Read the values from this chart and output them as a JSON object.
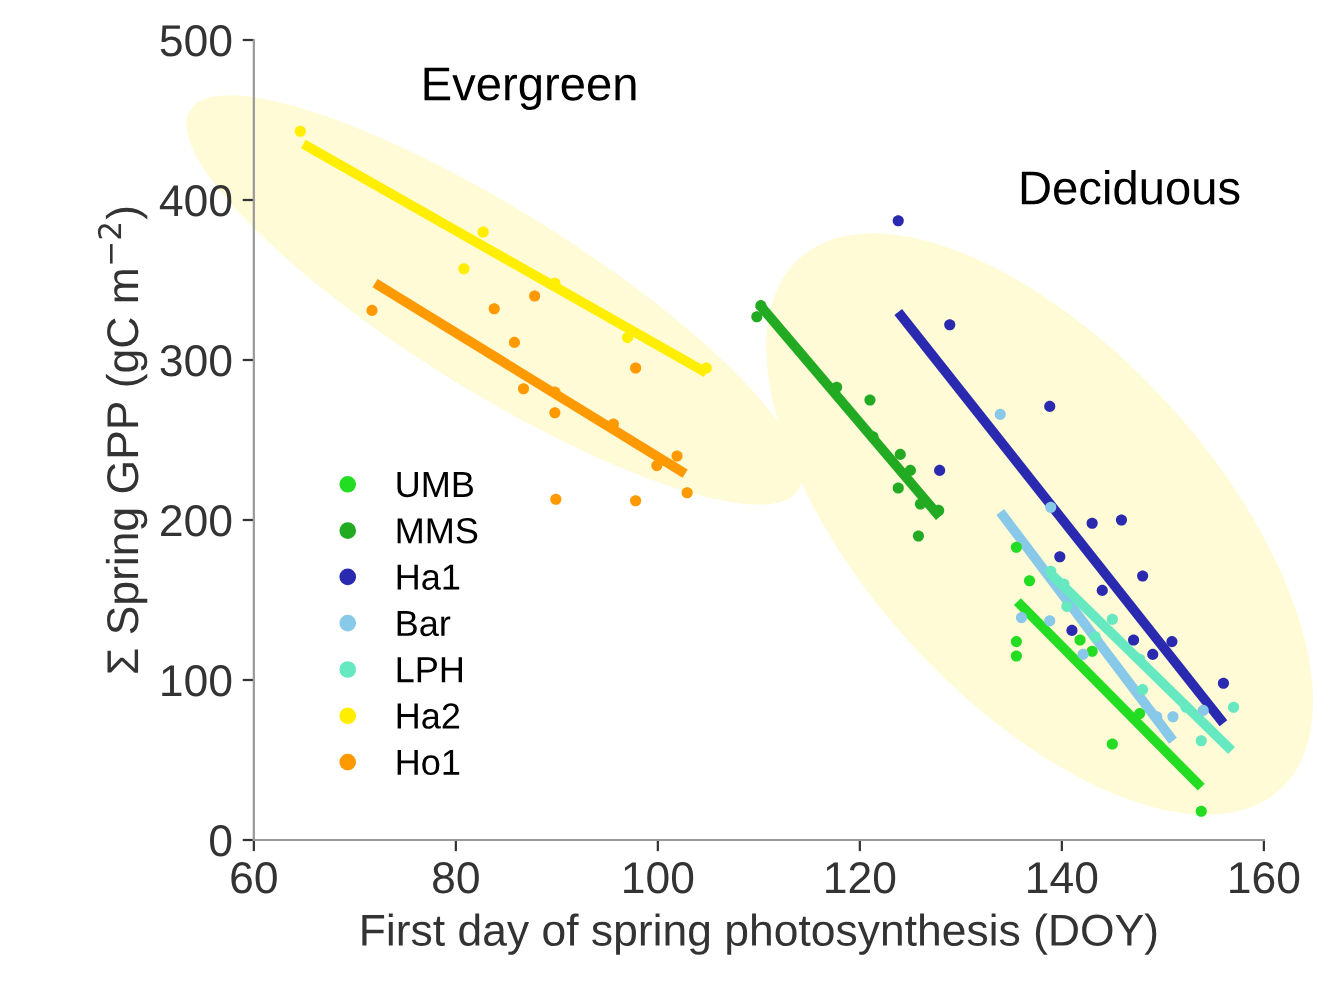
{
  "chart_data": {
    "type": "scatter",
    "xlabel": "First day of spring photosynthesis (DOY)",
    "ylabel": "Σ Spring GPP (gC m$^{−2}$)",
    "xlim": [
      60,
      160
    ],
    "xticks": [
      60,
      80,
      100,
      120,
      140,
      160
    ],
    "ylim": [
      0,
      500
    ],
    "yticks": [
      0,
      100,
      200,
      300,
      400,
      500
    ],
    "grid": false,
    "legend": "bottom left",
    "marker": "circle",
    "line_style": "solid",
    "annotations": [
      "Evergreen",
      "Deciduous"
    ],
    "series": [
      {
        "name": "UMB",
        "color": "#22dd22",
        "x": [
          135.5,
          136.8,
          135.5,
          135.5,
          141.8,
          143,
          145,
          147.7,
          153.8
        ],
        "values": [
          183,
          162,
          124,
          115,
          125,
          118,
          60,
          79,
          18
        ]
      },
      {
        "name": "MMS",
        "color": "#22aa22",
        "x": [
          109.8,
          110.2,
          117.7,
          121,
          124,
          125,
          123.8,
          126,
          125.8,
          127.8,
          121.3
        ],
        "values": [
          327,
          334,
          283,
          275,
          241,
          231,
          220,
          210,
          190,
          206,
          252
        ]
      },
      {
        "name": "Ha1",
        "color": "#2a2ab0",
        "x": [
          123.8,
          128.9,
          138.8,
          127.9,
          143,
          145.9,
          139.8,
          148,
          144,
          141,
          147.1,
          150.9,
          149,
          156
        ],
        "values": [
          387,
          322,
          271,
          231,
          198,
          200,
          177,
          165,
          156,
          131,
          125,
          124,
          116,
          98
        ]
      },
      {
        "name": "Bar",
        "color": "#88c8e8",
        "x": [
          133.9,
          138.9,
          136,
          138.8,
          142.1,
          149.4,
          151,
          154
        ],
        "values": [
          266,
          208,
          139,
          137,
          116,
          77,
          77,
          81
        ]
      },
      {
        "name": "LPH",
        "color": "#66e8c0",
        "x": [
          138.9,
          140.5,
          145,
          143.3,
          147.7,
          148,
          152.3,
          153.8,
          157,
          140.2
        ],
        "values": [
          168,
          146,
          138,
          127,
          113,
          94,
          83,
          62,
          83,
          160
        ]
      },
      {
        "name": "Ha2",
        "color": "#ffee00",
        "x": [
          64.6,
          82.7,
          80.8,
          89.8,
          97,
          104.8
        ],
        "values": [
          443,
          380,
          357,
          348,
          314,
          295
        ]
      },
      {
        "name": "Ho1",
        "color": "#ff9900",
        "x": [
          71.7,
          83.8,
          87.8,
          85.8,
          86.7,
          89.8,
          89.8,
          95.6,
          97.8,
          99.9,
          101.9,
          89.9,
          97.8,
          102.9
        ],
        "values": [
          331,
          332,
          340,
          311,
          282,
          280,
          267,
          260,
          295,
          234,
          240,
          213,
          212,
          217
        ]
      },
      {
        "type": "line",
        "marker": "none",
        "color": "#22dd22",
        "x": [
          135.6,
          153.8
        ],
        "values": [
          149,
          33
        ]
      },
      {
        "type": "line",
        "marker": "none",
        "color": "#22aa22",
        "x": [
          110,
          127.9
        ],
        "values": [
          335,
          202
        ]
      },
      {
        "type": "line",
        "marker": "none",
        "color": "#2a2ab0",
        "x": [
          123.8,
          156
        ],
        "values": [
          330,
          73
        ]
      },
      {
        "type": "line",
        "marker": "none",
        "color": "#88c8e8",
        "x": [
          133.9,
          151
        ],
        "values": [
          205,
          62
        ]
      },
      {
        "type": "line",
        "marker": "none",
        "color": "#66e8c0",
        "x": [
          138.8,
          156.8
        ],
        "values": [
          167,
          56
        ]
      },
      {
        "type": "line",
        "marker": "none",
        "color": "#ffee00",
        "x": [
          64.9,
          104.8
        ],
        "values": [
          435,
          292
        ]
      },
      {
        "type": "line",
        "marker": "none",
        "color": "#ff9900",
        "x": [
          72,
          102.7
        ],
        "values": [
          348,
          229
        ]
      }
    ]
  }
}
